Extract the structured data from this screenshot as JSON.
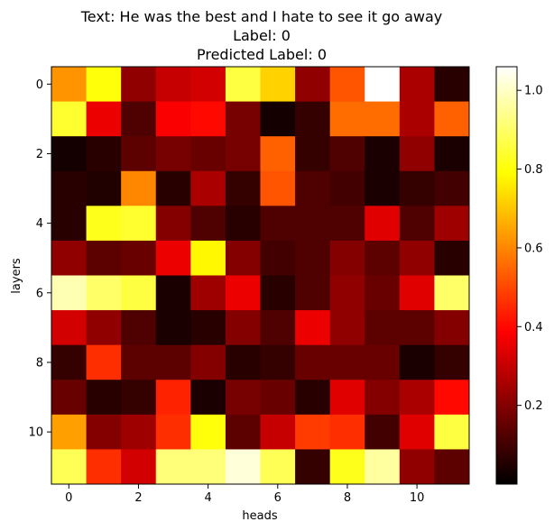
{
  "chart_data": {
    "type": "heatmap",
    "title_lines": [
      "Text: He was the best and I hate to see it go away",
      "Label: 0",
      "Predicted Label: 0"
    ],
    "xlabel": "heads",
    "ylabel": "layers",
    "x_ticks": [
      0,
      2,
      4,
      6,
      8,
      10
    ],
    "y_ticks": [
      0,
      2,
      4,
      6,
      8,
      10
    ],
    "rows": 12,
    "cols": 12,
    "colormap": "hot",
    "colorbar": {
      "vmin": 0.0,
      "vmax": 1.06,
      "ticks": [
        0.2,
        0.4,
        0.6,
        0.8,
        1.0
      ],
      "tick_labels": [
        "0.2",
        "0.4",
        "0.6",
        "0.8",
        "1.0"
      ]
    },
    "values": [
      [
        0.62,
        0.8,
        0.22,
        0.3,
        0.32,
        0.86,
        0.72,
        0.22,
        0.52,
        1.06,
        0.26,
        0.06
      ],
      [
        0.84,
        0.36,
        0.12,
        0.38,
        0.4,
        0.18,
        0.03,
        0.08,
        0.56,
        0.56,
        0.26,
        0.54
      ],
      [
        0.03,
        0.06,
        0.14,
        0.18,
        0.16,
        0.18,
        0.54,
        0.08,
        0.12,
        0.04,
        0.22,
        0.04
      ],
      [
        0.06,
        0.05,
        0.6,
        0.06,
        0.26,
        0.08,
        0.52,
        0.12,
        0.1,
        0.04,
        0.08,
        0.1
      ],
      [
        0.06,
        0.82,
        0.84,
        0.2,
        0.12,
        0.06,
        0.12,
        0.12,
        0.12,
        0.34,
        0.12,
        0.24
      ],
      [
        0.22,
        0.14,
        0.16,
        0.36,
        0.78,
        0.2,
        0.1,
        0.12,
        0.2,
        0.14,
        0.22,
        0.06
      ],
      [
        0.98,
        0.9,
        0.86,
        0.04,
        0.24,
        0.36,
        0.06,
        0.12,
        0.22,
        0.16,
        0.34,
        0.9
      ],
      [
        0.32,
        0.22,
        0.12,
        0.04,
        0.06,
        0.2,
        0.12,
        0.36,
        0.22,
        0.14,
        0.14,
        0.2
      ],
      [
        0.08,
        0.46,
        0.14,
        0.14,
        0.2,
        0.06,
        0.08,
        0.16,
        0.16,
        0.16,
        0.04,
        0.08
      ],
      [
        0.16,
        0.06,
        0.08,
        0.44,
        0.04,
        0.18,
        0.16,
        0.06,
        0.34,
        0.2,
        0.26,
        0.4
      ],
      [
        0.64,
        0.2,
        0.24,
        0.46,
        0.8,
        0.14,
        0.3,
        0.48,
        0.46,
        0.1,
        0.34,
        0.86
      ],
      [
        0.88,
        0.46,
        0.32,
        0.92,
        0.92,
        1.02,
        0.88,
        0.08,
        0.82,
        0.96,
        0.22,
        0.14
      ]
    ]
  }
}
